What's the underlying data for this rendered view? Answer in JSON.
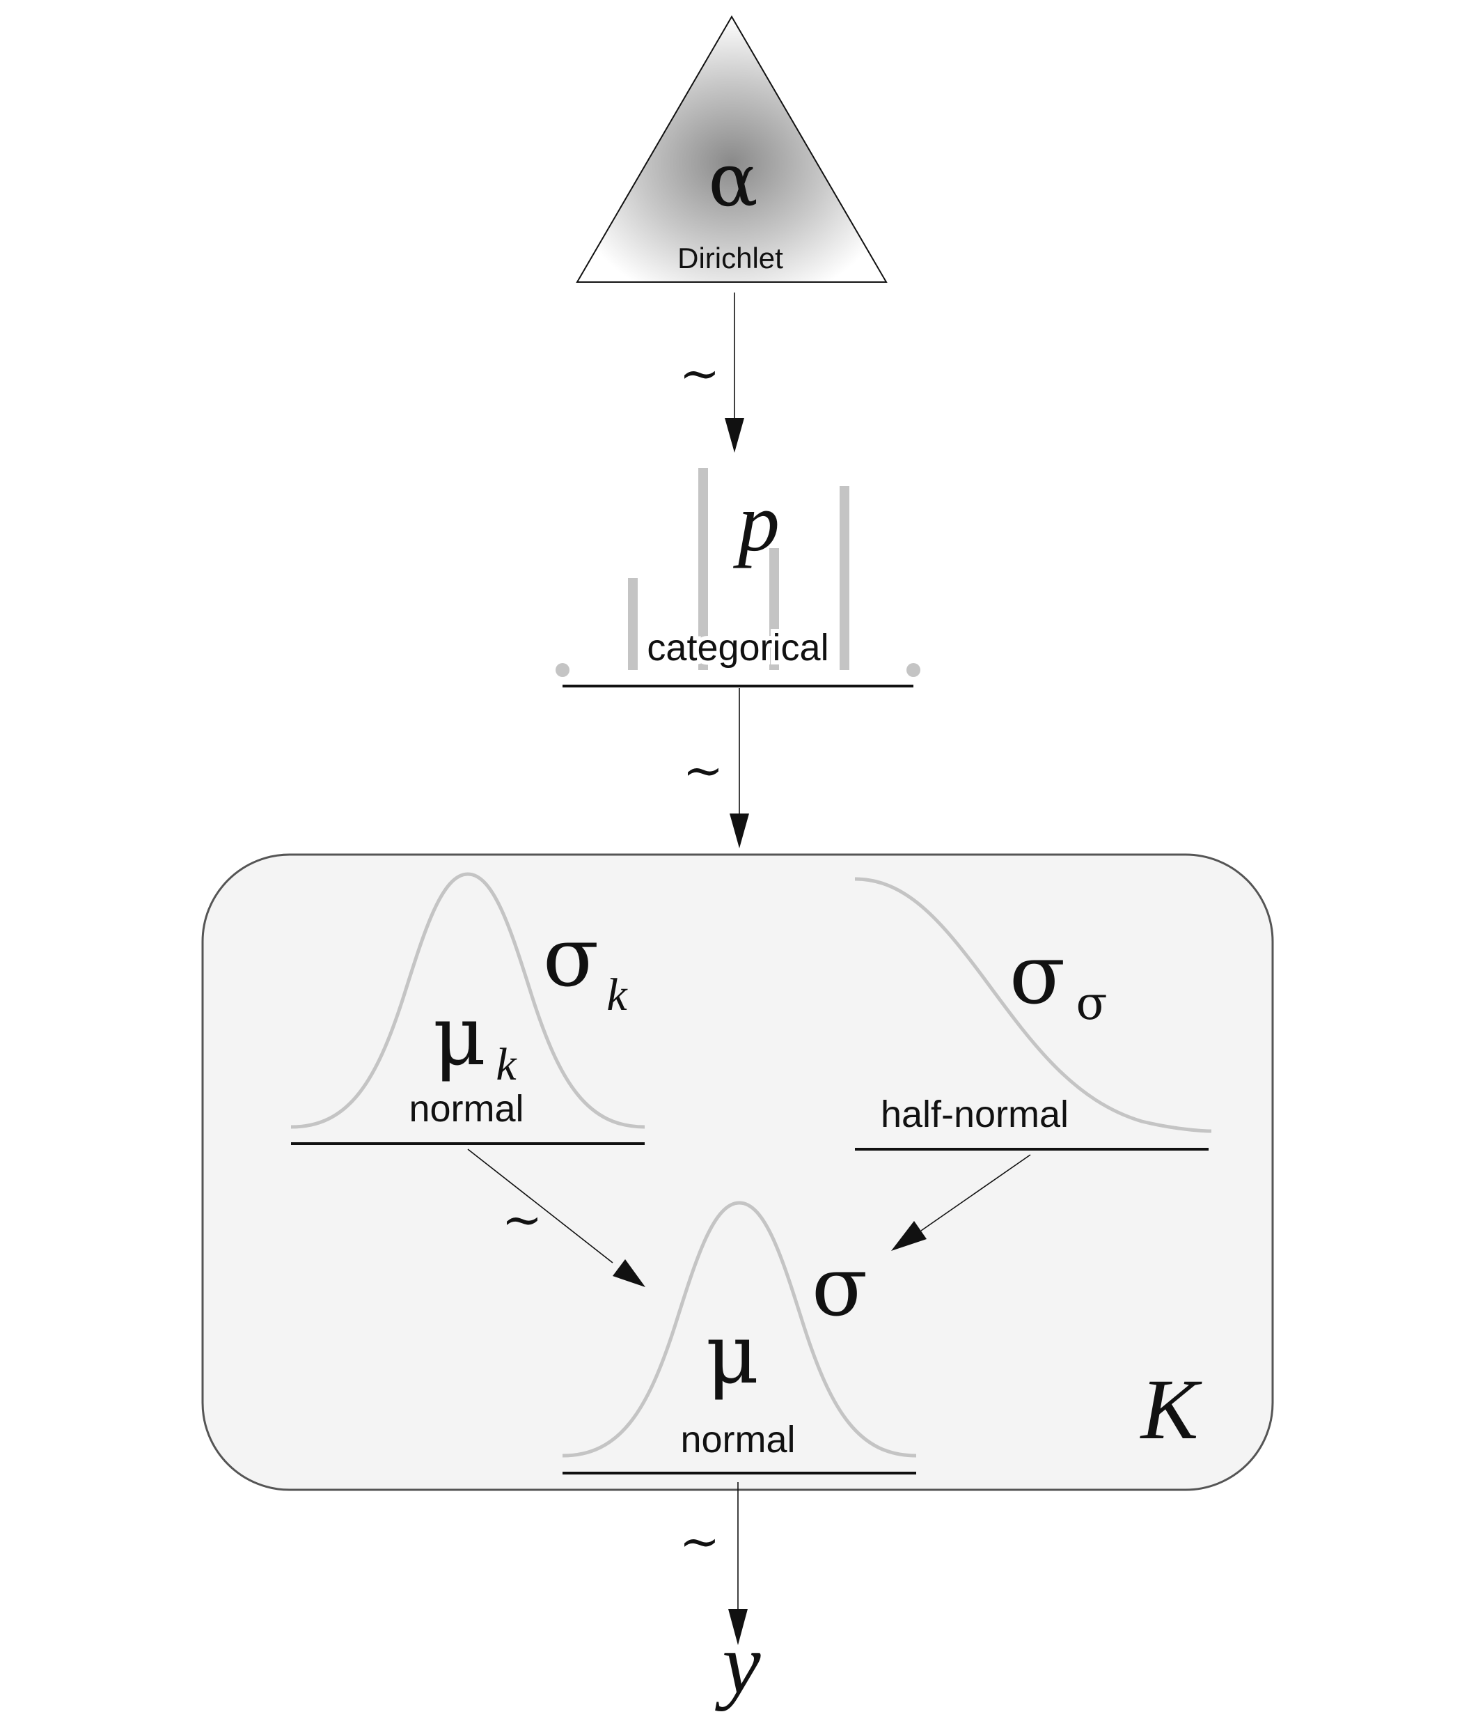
{
  "nodes": {
    "alpha": {
      "symbol": "α",
      "distribution": "Dirichlet"
    },
    "p": {
      "symbol": "p",
      "distribution": "categorical"
    },
    "mu_k": {
      "symbol": "μ",
      "subscript": "k",
      "distribution": "normal"
    },
    "sigma_k": {
      "symbol": "σ",
      "subscript": "k"
    },
    "sigma_sigma": {
      "symbol": "σ",
      "subscript": "σ",
      "distribution": "half-normal"
    },
    "mu": {
      "symbol": "μ",
      "distribution": "normal"
    },
    "sigma": {
      "symbol": "σ"
    },
    "y": {
      "symbol": "y"
    }
  },
  "plate": {
    "label": "K"
  },
  "edges": {
    "alpha_to_p": "~",
    "p_to_plate": "~",
    "mu_k_to_mu": "~",
    "mu_to_y": "~"
  },
  "colors": {
    "stroke": "#111111",
    "shape_gray": "#c4c4c4",
    "plate_fill": "#f4f4f4",
    "plate_stroke": "#555555"
  }
}
